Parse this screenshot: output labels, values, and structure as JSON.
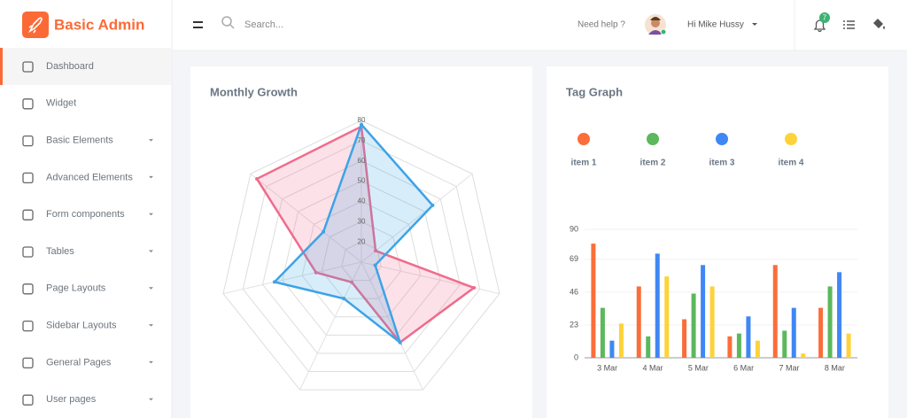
{
  "app": {
    "brand": "Basic Admin",
    "search_placeholder": "Search...",
    "help": "Need help ?",
    "user": "Hi Mike Hussy",
    "notifications": 7,
    "sidebar": [
      {
        "label": "Dashboard",
        "active": true,
        "submenu": false
      },
      {
        "label": "Widget",
        "active": false,
        "submenu": false
      },
      {
        "label": "Basic Elements",
        "active": false,
        "submenu": true
      },
      {
        "label": "Advanced Elements",
        "active": false,
        "submenu": true
      },
      {
        "label": "Form components",
        "active": false,
        "submenu": true
      },
      {
        "label": "Tables",
        "active": false,
        "submenu": true
      },
      {
        "label": "Page Layouts",
        "active": false,
        "submenu": true
      },
      {
        "label": "Sidebar Layouts",
        "active": false,
        "submenu": true
      },
      {
        "label": "General Pages",
        "active": false,
        "submenu": true
      },
      {
        "label": "User pages",
        "active": false,
        "submenu": true
      }
    ]
  },
  "chart_data": [
    {
      "type": "radar",
      "title": "Monthly Growth",
      "rlim": [
        10,
        80
      ],
      "rticks": [
        20,
        30,
        40,
        50,
        60,
        70,
        80
      ],
      "grid": true,
      "series": [
        {
          "color": "#ef6b8c",
          "values": [
            77,
            19,
            67,
            54,
            21,
            33,
            76
          ]
        },
        {
          "color": "#3ea3e6",
          "values": [
            78,
            55,
            17,
            54,
            30,
            54,
            34
          ]
        }
      ]
    },
    {
      "type": "bar",
      "title": "Tag Graph",
      "categories": [
        "3 Mar",
        "4 Mar",
        "5 Mar",
        "6 Mar",
        "7 Mar",
        "8 Mar"
      ],
      "ylim": [
        0,
        90
      ],
      "yticks": [
        0,
        23,
        46,
        69,
        90
      ],
      "grid": true,
      "legend": "top",
      "series": [
        {
          "name": "item 1",
          "color": "#fb6d3a",
          "values": [
            80,
            50,
            27,
            15,
            65,
            35
          ]
        },
        {
          "name": "item 2",
          "color": "#5cb85c",
          "values": [
            35,
            15,
            45,
            17,
            19,
            50
          ]
        },
        {
          "name": "item 3",
          "color": "#3f87f5",
          "values": [
            12,
            73,
            65,
            29,
            35,
            60
          ]
        },
        {
          "name": "item 4",
          "color": "#fdd339",
          "values": [
            24,
            57,
            50,
            12,
            3,
            17
          ]
        }
      ]
    }
  ]
}
